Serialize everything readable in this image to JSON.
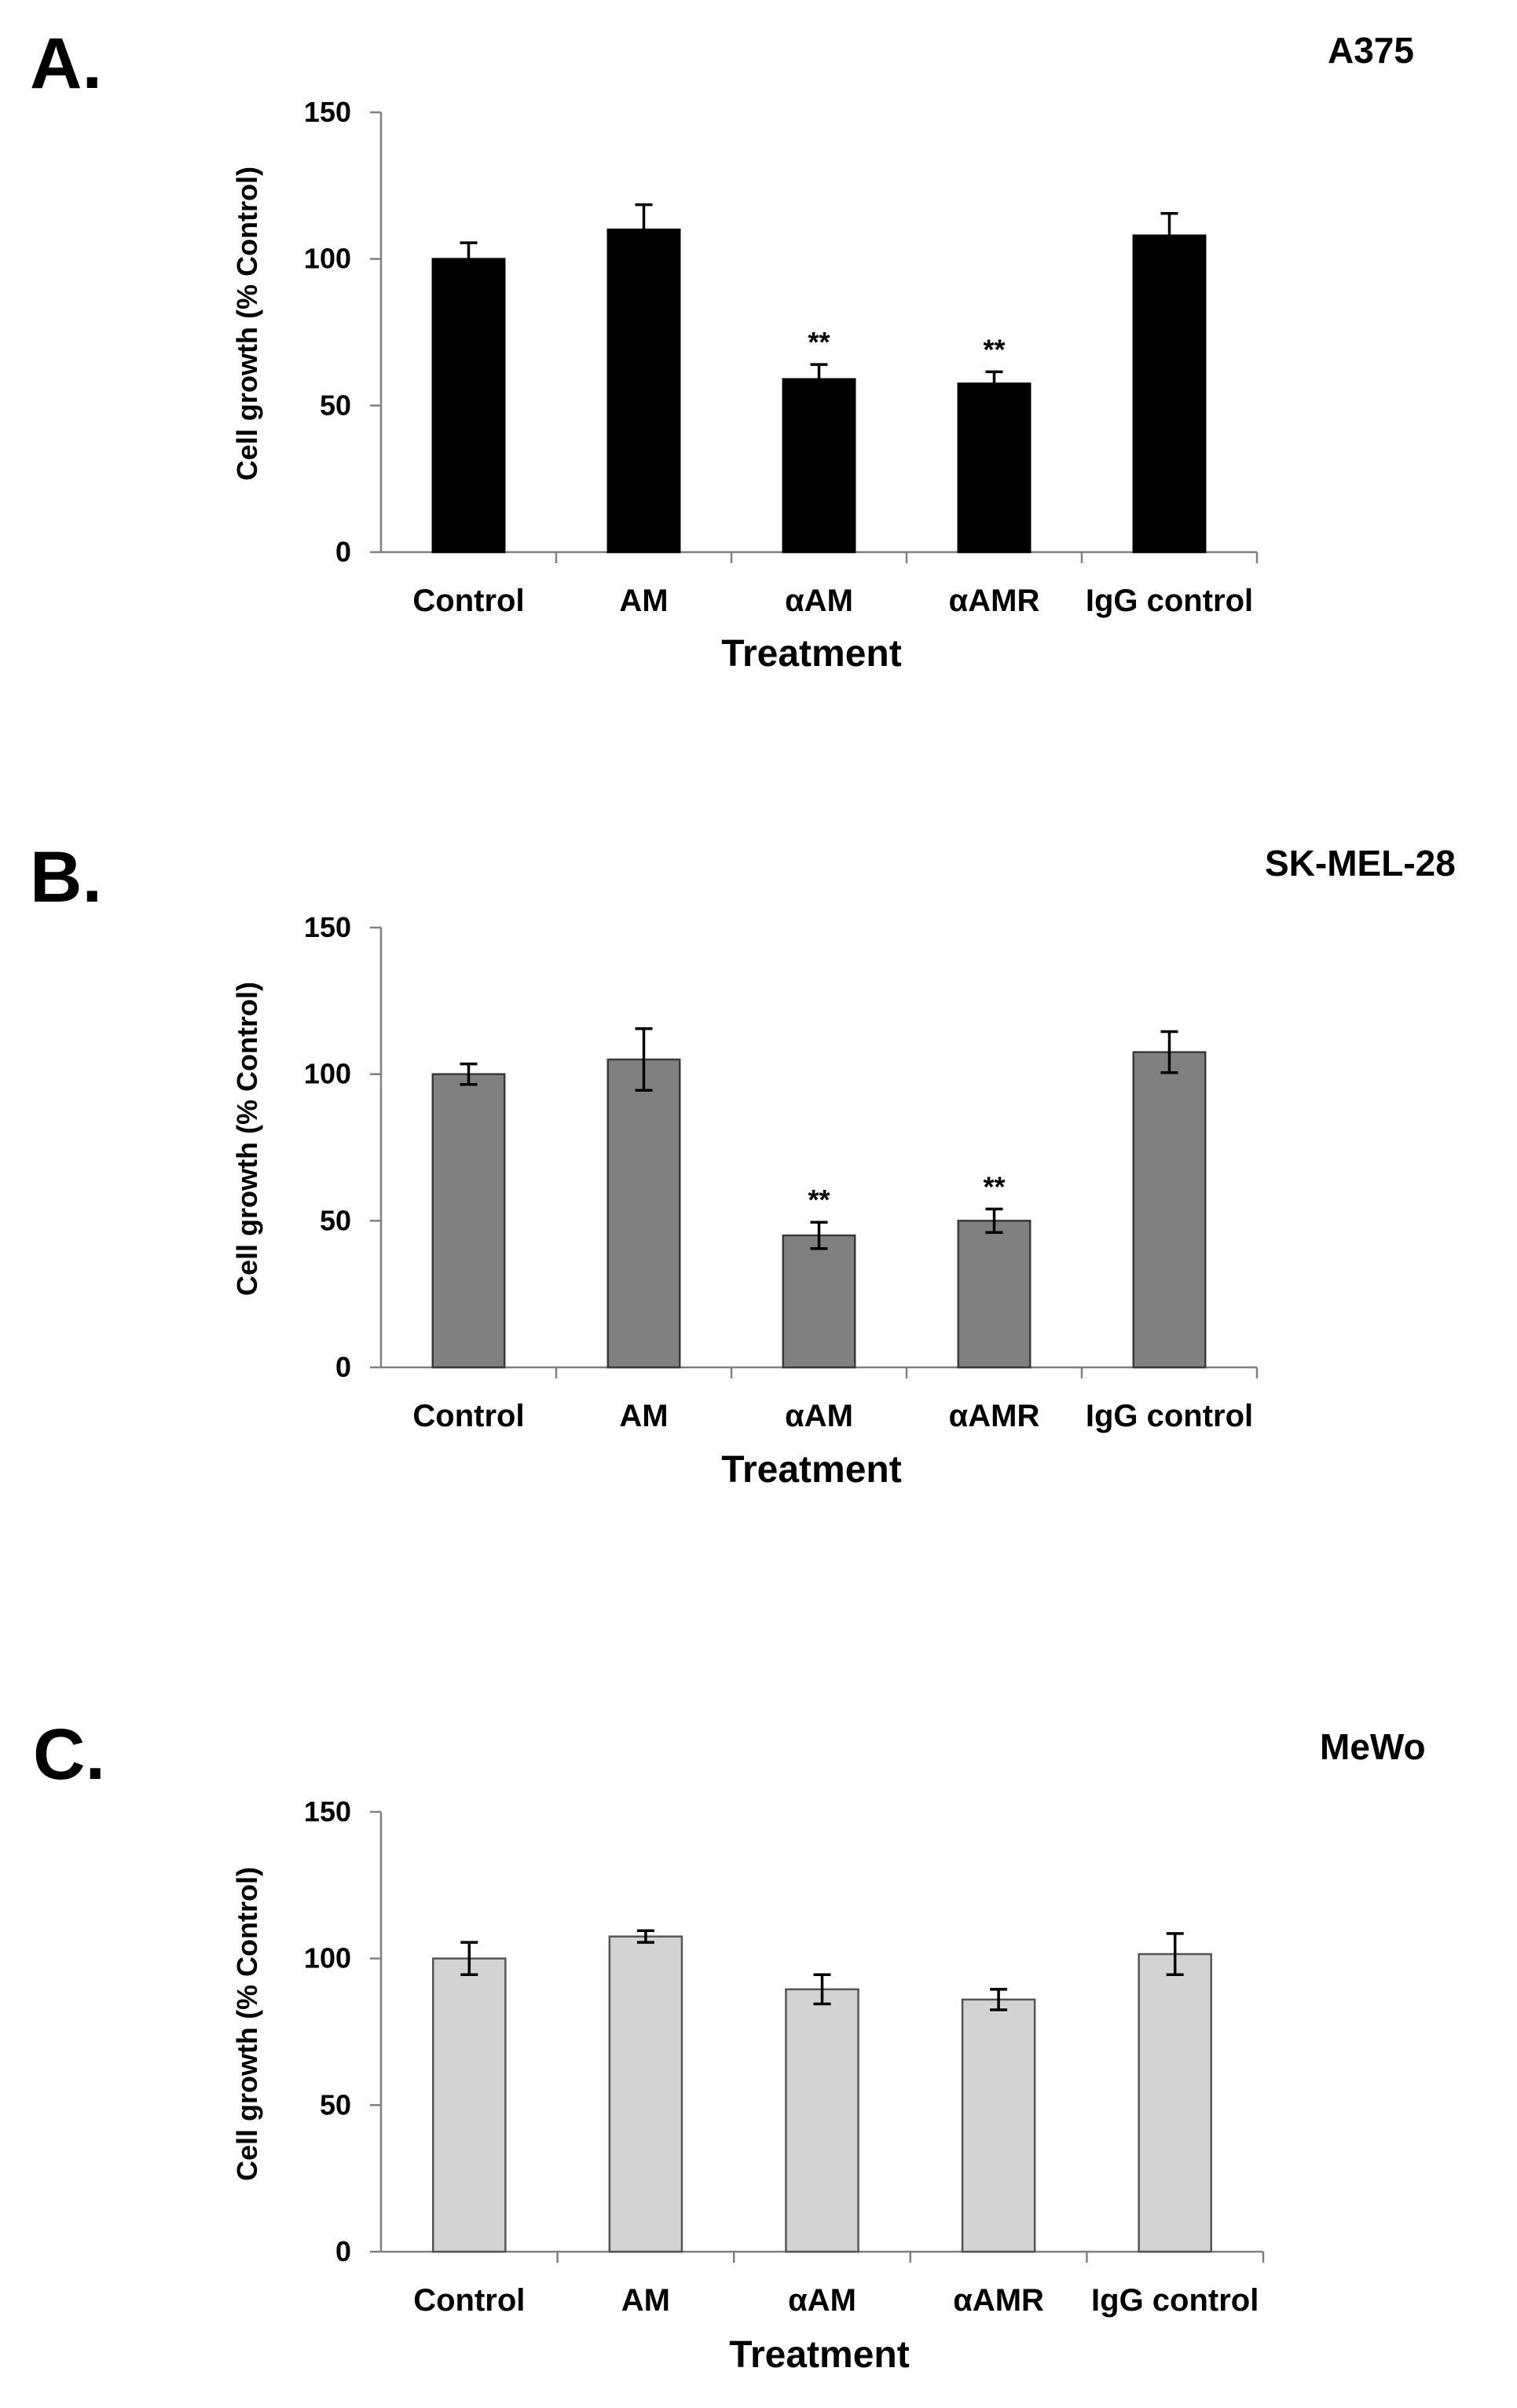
{
  "chart_data": [
    {
      "type": "bar",
      "panel": "A.",
      "title": "A375",
      "categories": [
        "Control",
        "AM",
        "αAM",
        "αAMR",
        "IgG control"
      ],
      "values": [
        100,
        110,
        59,
        57.5,
        108
      ],
      "errors": [
        5.5,
        8.5,
        5,
        4,
        7.5
      ],
      "significance": [
        "",
        "",
        "**",
        "**",
        ""
      ],
      "error_style": "upper",
      "bar_color": "#000000",
      "xlabel": "Treatment",
      "ylabel": "Cell growth (% Control)",
      "ylim": [
        0,
        150
      ],
      "yticks": [
        0,
        50,
        100,
        150
      ]
    },
    {
      "type": "bar",
      "panel": "B.",
      "title": "SK-MEL-28",
      "categories": [
        "Control",
        "AM",
        "αAM",
        "αAMR",
        "IgG control"
      ],
      "values": [
        100,
        105,
        45,
        50,
        107.5
      ],
      "errors": [
        3.5,
        10.5,
        4.5,
        4,
        7
      ],
      "significance": [
        "",
        "",
        "**",
        "**",
        ""
      ],
      "error_style": "both",
      "bar_color": "#808080",
      "xlabel": "Treatment",
      "ylabel": "Cell growth (% Control)",
      "ylim": [
        0,
        150
      ],
      "yticks": [
        0,
        50,
        100,
        150
      ]
    },
    {
      "type": "bar",
      "panel": "C.",
      "title": "MeWo",
      "categories": [
        "Control",
        "AM",
        "αAM",
        "αAMR",
        "IgG control"
      ],
      "values": [
        100,
        107.5,
        89.5,
        86,
        101.5
      ],
      "errors": [
        5.5,
        2,
        5,
        3.5,
        7
      ],
      "significance": [
        "",
        "",
        "",
        "",
        ""
      ],
      "error_style": "both",
      "bar_color": "#d3d3d3",
      "xlabel": "Treatment",
      "ylabel": "Cell growth (% Control)",
      "ylim": [
        0,
        150
      ],
      "yticks": [
        0,
        50,
        100,
        150
      ]
    }
  ]
}
